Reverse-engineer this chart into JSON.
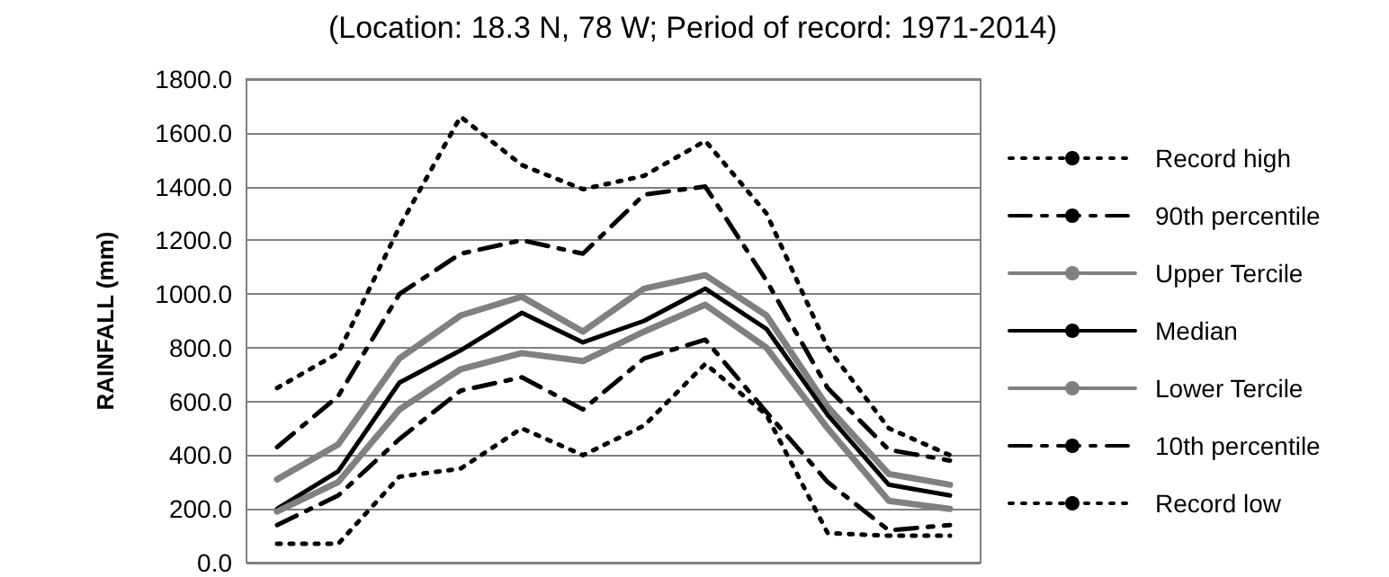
{
  "chart_data": {
    "type": "line",
    "title": "(Location: 18.3 N, 78 W; Period of record: 1971-2014)",
    "ylabel": "RAINFALL (mm)",
    "categories": [
      null,
      null,
      null,
      null,
      null,
      null,
      null,
      null,
      null,
      null,
      null,
      null
    ],
    "ylim": [
      0,
      1800
    ],
    "yticks": [
      {
        "value": 0,
        "label": "0.0"
      },
      {
        "value": 200,
        "label": "200.0"
      },
      {
        "value": 400,
        "label": "400.0"
      },
      {
        "value": 600,
        "label": "600.0"
      },
      {
        "value": 800,
        "label": "800.0"
      },
      {
        "value": 1000,
        "label": "1000.0"
      },
      {
        "value": 1200,
        "label": "1200.0"
      },
      {
        "value": 1400,
        "label": "1400.0"
      },
      {
        "value": 1600,
        "label": "1600.0"
      },
      {
        "value": 1800,
        "label": "1800.0"
      }
    ],
    "grid": "y",
    "legend": "right",
    "marker": "none",
    "series": [
      {
        "name": "Record high",
        "color": "#000000",
        "line_style": "dotted",
        "values": [
          650,
          780,
          1250,
          1660,
          1480,
          1390,
          1440,
          1570,
          1300,
          800,
          500,
          400
        ]
      },
      {
        "name": "90th percentile",
        "color": "#000000",
        "line_style": "dashed",
        "values": [
          430,
          620,
          1000,
          1150,
          1200,
          1150,
          1370,
          1400,
          1050,
          650,
          420,
          380
        ]
      },
      {
        "name": "Upper Tercile",
        "color": "#808080",
        "line_style": "solid",
        "values": [
          310,
          440,
          760,
          920,
          990,
          860,
          1020,
          1070,
          920,
          580,
          330,
          290
        ]
      },
      {
        "name": "Median",
        "color": "#000000",
        "line_style": "solid",
        "values": [
          200,
          340,
          670,
          790,
          930,
          820,
          900,
          1020,
          870,
          550,
          290,
          250
        ]
      },
      {
        "name": "Lower Tercile",
        "color": "#808080",
        "line_style": "solid",
        "values": [
          190,
          300,
          570,
          720,
          780,
          750,
          860,
          960,
          800,
          500,
          230,
          200
        ]
      },
      {
        "name": "10th percentile",
        "color": "#000000",
        "line_style": "dashed",
        "values": [
          140,
          250,
          460,
          640,
          690,
          570,
          760,
          830,
          560,
          300,
          120,
          140
        ]
      },
      {
        "name": "Record low",
        "color": "#000000",
        "line_style": "dotted",
        "values": [
          70,
          70,
          320,
          350,
          500,
          400,
          510,
          740,
          550,
          110,
          100,
          100
        ]
      }
    ]
  }
}
